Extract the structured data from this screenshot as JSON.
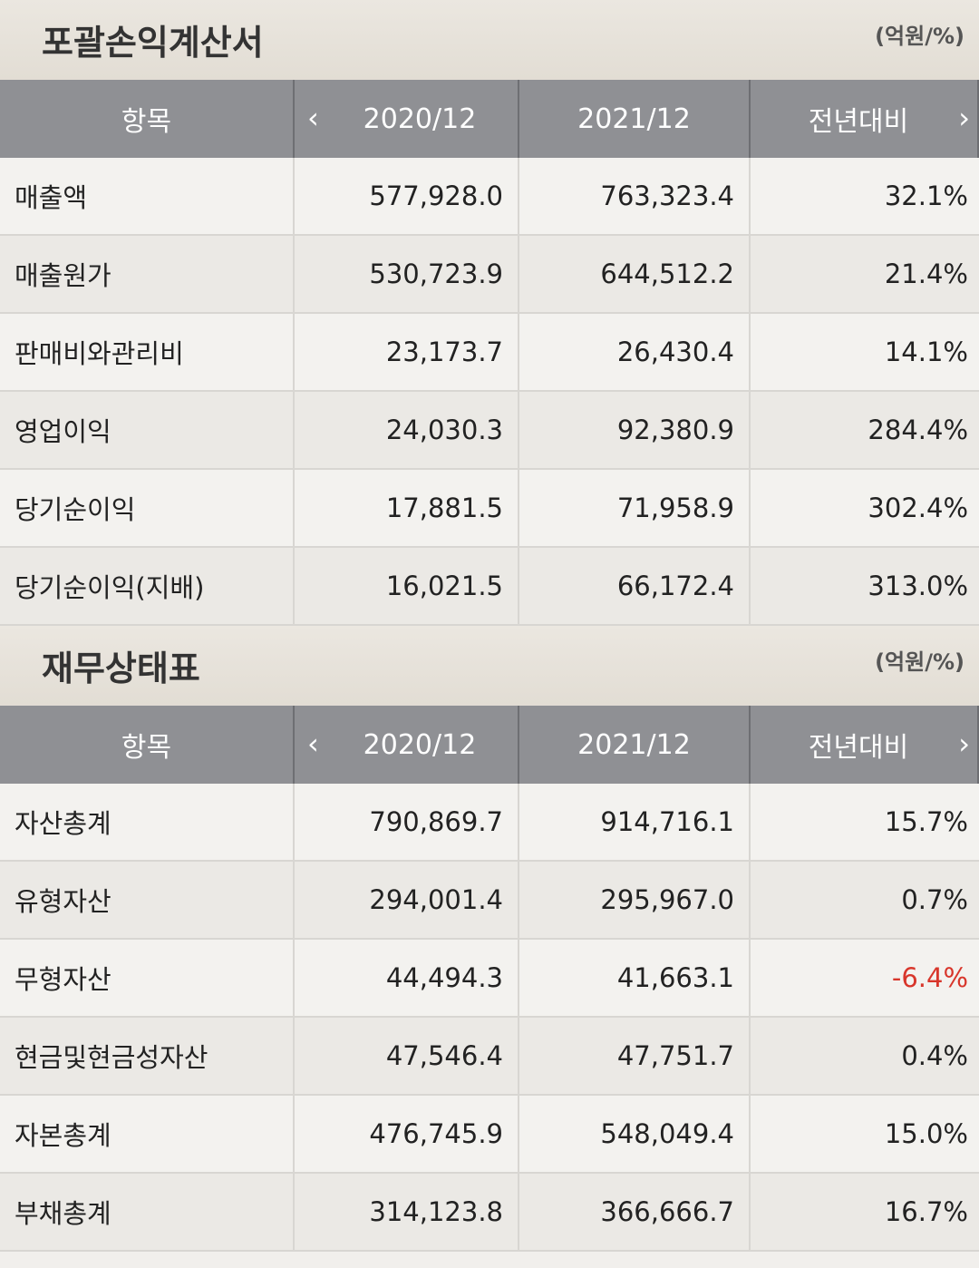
{
  "income_statement": {
    "title": "포괄손익계산서",
    "unit": "(억원/%)",
    "headers": [
      "항목",
      "2020/12",
      "2021/12",
      "전년대비"
    ],
    "rows": [
      {
        "label": "매출액",
        "v2020": "577,928.0",
        "v2021": "763,323.4",
        "yoy": "32.1%"
      },
      {
        "label": "매출원가",
        "v2020": "530,723.9",
        "v2021": "644,512.2",
        "yoy": "21.4%"
      },
      {
        "label": "판매비와관리비",
        "v2020": "23,173.7",
        "v2021": "26,430.4",
        "yoy": "14.1%"
      },
      {
        "label": "영업이익",
        "v2020": "24,030.3",
        "v2021": "92,380.9",
        "yoy": "284.4%"
      },
      {
        "label": "당기순이익",
        "v2020": "17,881.5",
        "v2021": "71,958.9",
        "yoy": "302.4%"
      },
      {
        "label": "당기순이익(지배)",
        "v2020": "16,021.5",
        "v2021": "66,172.4",
        "yoy": "313.0%"
      }
    ]
  },
  "balance_sheet": {
    "title": "재무상태표",
    "unit": "(억원/%)",
    "headers": [
      "항목",
      "2020/12",
      "2021/12",
      "전년대비"
    ],
    "rows": [
      {
        "label": "자산총계",
        "v2020": "790,869.7",
        "v2021": "914,716.1",
        "yoy": "15.7%"
      },
      {
        "label": "유형자산",
        "v2020": "294,001.4",
        "v2021": "295,967.0",
        "yoy": "0.7%"
      },
      {
        "label": "무형자산",
        "v2020": "44,494.3",
        "v2021": "41,663.1",
        "yoy": "-6.4%"
      },
      {
        "label": "현금및현금성자산",
        "v2020": "47,546.4",
        "v2021": "47,751.7",
        "yoy": "0.4%"
      },
      {
        "label": "자본총계",
        "v2020": "476,745.9",
        "v2021": "548,049.4",
        "yoy": "15.0%"
      },
      {
        "label": "부채총계",
        "v2020": "314,123.8",
        "v2021": "366,666.7",
        "yoy": "16.7%"
      }
    ]
  },
  "icons": {
    "prev": "chevron-left-icon",
    "next": "chevron-right-icon"
  },
  "colors": {
    "header_bg": "#8f9094",
    "negative": "#d8362b"
  }
}
